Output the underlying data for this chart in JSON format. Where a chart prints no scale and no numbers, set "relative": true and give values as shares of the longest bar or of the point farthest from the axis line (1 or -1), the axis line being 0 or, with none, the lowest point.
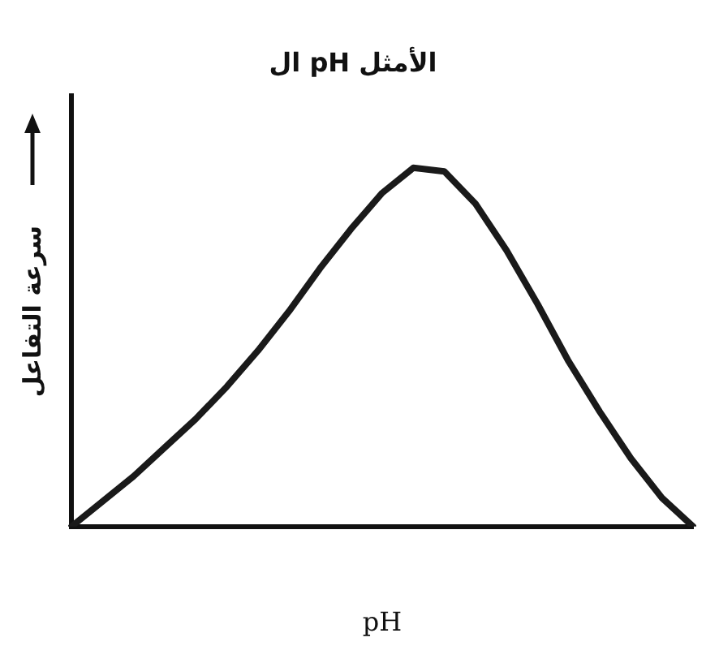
{
  "chart_data": {
    "type": "line",
    "title": "ال pH الأمثل",
    "xlabel": "pH",
    "ylabel": "سرعة التفاعل",
    "relative": true,
    "categories": [
      null,
      null,
      null,
      null,
      null,
      null,
      null,
      null,
      null,
      null,
      null,
      null,
      null,
      null,
      null,
      null,
      null,
      null,
      null,
      null,
      null
    ],
    "grid": false,
    "legend": false,
    "marker": "none",
    "line_style": "solid",
    "series": [
      {
        "color": "#1a1a1a",
        "values": [
          0,
          0.07,
          0.14,
          0.22,
          0.3,
          0.39,
          0.49,
          0.6,
          0.72,
          0.83,
          0.93,
          1.0,
          0.99,
          0.9,
          0.77,
          0.62,
          0.46,
          0.32,
          0.19,
          0.08,
          0
        ]
      }
    ]
  }
}
